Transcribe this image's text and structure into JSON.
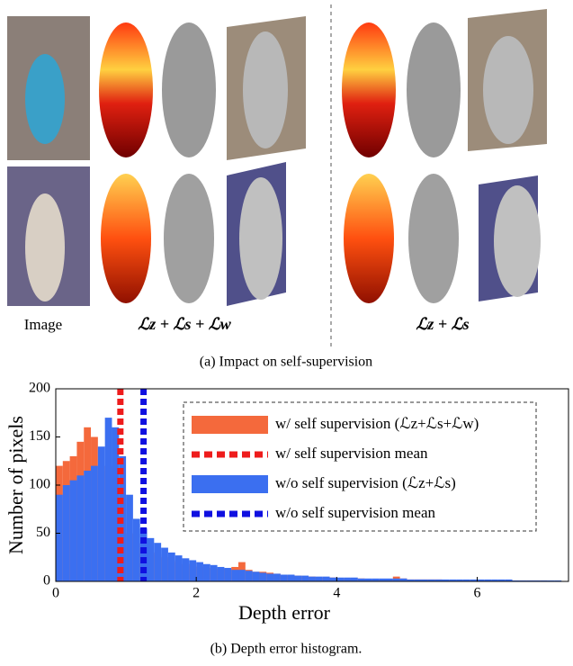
{
  "figure_a": {
    "labels": [
      "Image",
      "ℒz + ℒs + ℒw",
      "ℒz + ℒs"
    ],
    "caption": "(a) Impact on self-supervision"
  },
  "chart_data": {
    "type": "histogram",
    "xlabel": "Depth error",
    "ylabel": "Number of pixels",
    "caption": "(b) Depth error histogram.",
    "bins": [
      0,
      0.1,
      0.2,
      0.3,
      0.4,
      0.5,
      0.6,
      0.7,
      0.8,
      0.9,
      1,
      1.1,
      1.2,
      1.3,
      1.4,
      1.5,
      1.6,
      1.7,
      1.8,
      1.9,
      2,
      2.1,
      2.2,
      2.3,
      2.4,
      2.5,
      2.6,
      2.7,
      2.8,
      2.9,
      3,
      3.1,
      3.2,
      3.3,
      3.4,
      3.5,
      3.6,
      3.7,
      3.8,
      3.9,
      4,
      4.1,
      4.2,
      4.3,
      4.4,
      4.5,
      4.6,
      4.7,
      4.8,
      4.9,
      5,
      5.1,
      5.2,
      5.3,
      5.4,
      5.5,
      5.6,
      5.7,
      5.8,
      5.9,
      6,
      6.1,
      6.2,
      6.3,
      6.4,
      6.5,
      6.6,
      6.7,
      6.8,
      6.9,
      7,
      7.1,
      7.2
    ],
    "series": [
      {
        "name": "w/ self supervision (ℒz+ℒs+ℒw)",
        "color": "#f4693c",
        "values": [
          120,
          125,
          130,
          145,
          160,
          150,
          115,
          120,
          100,
          70,
          50,
          40,
          35,
          30,
          28,
          25,
          22,
          20,
          18,
          16,
          15,
          14,
          14,
          13,
          13,
          15,
          20,
          12,
          10,
          10,
          9,
          8,
          7,
          6,
          6,
          5,
          5,
          4,
          4,
          4,
          3,
          3,
          3,
          3,
          2,
          2,
          2,
          2,
          5,
          3,
          2,
          2,
          2,
          2,
          2,
          1,
          1,
          1,
          1,
          1,
          1,
          1,
          1,
          1,
          1,
          1,
          1,
          1,
          1,
          1,
          0,
          0
        ]
      },
      {
        "name": "w/o self supervision (ℒz+ℒs)",
        "color": "#3b6ff0",
        "values": [
          90,
          100,
          105,
          110,
          115,
          120,
          140,
          170,
          160,
          130,
          90,
          65,
          55,
          45,
          40,
          35,
          30,
          27,
          24,
          22,
          20,
          18,
          17,
          15,
          14,
          12,
          12,
          11,
          10,
          9,
          8,
          8,
          7,
          7,
          6,
          6,
          5,
          5,
          5,
          4,
          4,
          4,
          4,
          3,
          3,
          3,
          3,
          3,
          3,
          3,
          2,
          2,
          2,
          2,
          2,
          2,
          2,
          2,
          2,
          2,
          2,
          2,
          2,
          2,
          2,
          1,
          1,
          1,
          1,
          1,
          1,
          1
        ]
      }
    ],
    "mean_lines": [
      {
        "name": "w/ self supervision mean",
        "color": "#ee1c1c",
        "value": 0.92
      },
      {
        "name": "w/o self supervision mean",
        "color": "#1010e0",
        "value": 1.25
      }
    ],
    "xlim": [
      0,
      7.3
    ],
    "ylim": [
      0,
      200
    ],
    "xticks": [
      0,
      2,
      4,
      6
    ],
    "yticks": [
      0,
      50,
      100,
      150,
      200
    ]
  }
}
